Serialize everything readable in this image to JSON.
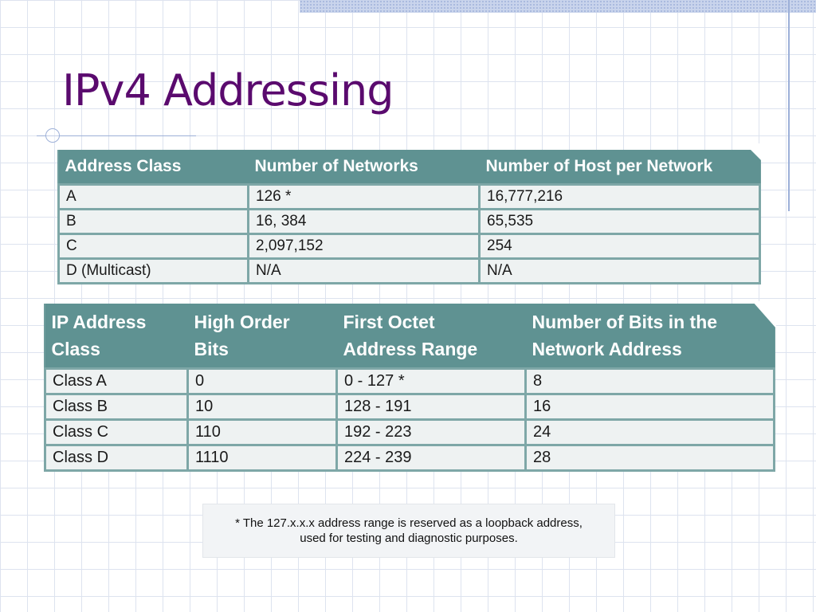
{
  "slide": {
    "title": "IPv4 Addressing"
  },
  "table1": {
    "headers": [
      "Address Class",
      "Number of Networks",
      "Number of Host per Network"
    ],
    "rows": [
      [
        "A",
        "126 *",
        "16,777,216"
      ],
      [
        "B",
        "16, 384",
        "65,535"
      ],
      [
        "C",
        "2,097,152",
        "254"
      ],
      [
        "D (Multicast)",
        "N/A",
        "N/A"
      ]
    ]
  },
  "table2": {
    "headers": [
      [
        "IP Address",
        "Class"
      ],
      [
        "High Order",
        "Bits"
      ],
      [
        "First Octet",
        "Address Range"
      ],
      [
        "Number of Bits in the",
        "Network Address"
      ]
    ],
    "rows": [
      [
        "Class A",
        "0",
        "0 - 127 *",
        "8"
      ],
      [
        "Class B",
        "10",
        "128 - 191",
        "16"
      ],
      [
        "Class C",
        "110",
        "192 - 223",
        "24"
      ],
      [
        "Class D",
        "1110",
        "224 - 239",
        "28"
      ]
    ]
  },
  "footnote": {
    "line1": "* The 127.x.x.x address range is reserved as a loopback address,",
    "line2": "used for testing and diagnostic purposes."
  },
  "colors": {
    "title": "#5a0a6e",
    "header_bg": "#5f9292",
    "cell_bg": "#eef2f2",
    "grid": "#dde3ef"
  }
}
